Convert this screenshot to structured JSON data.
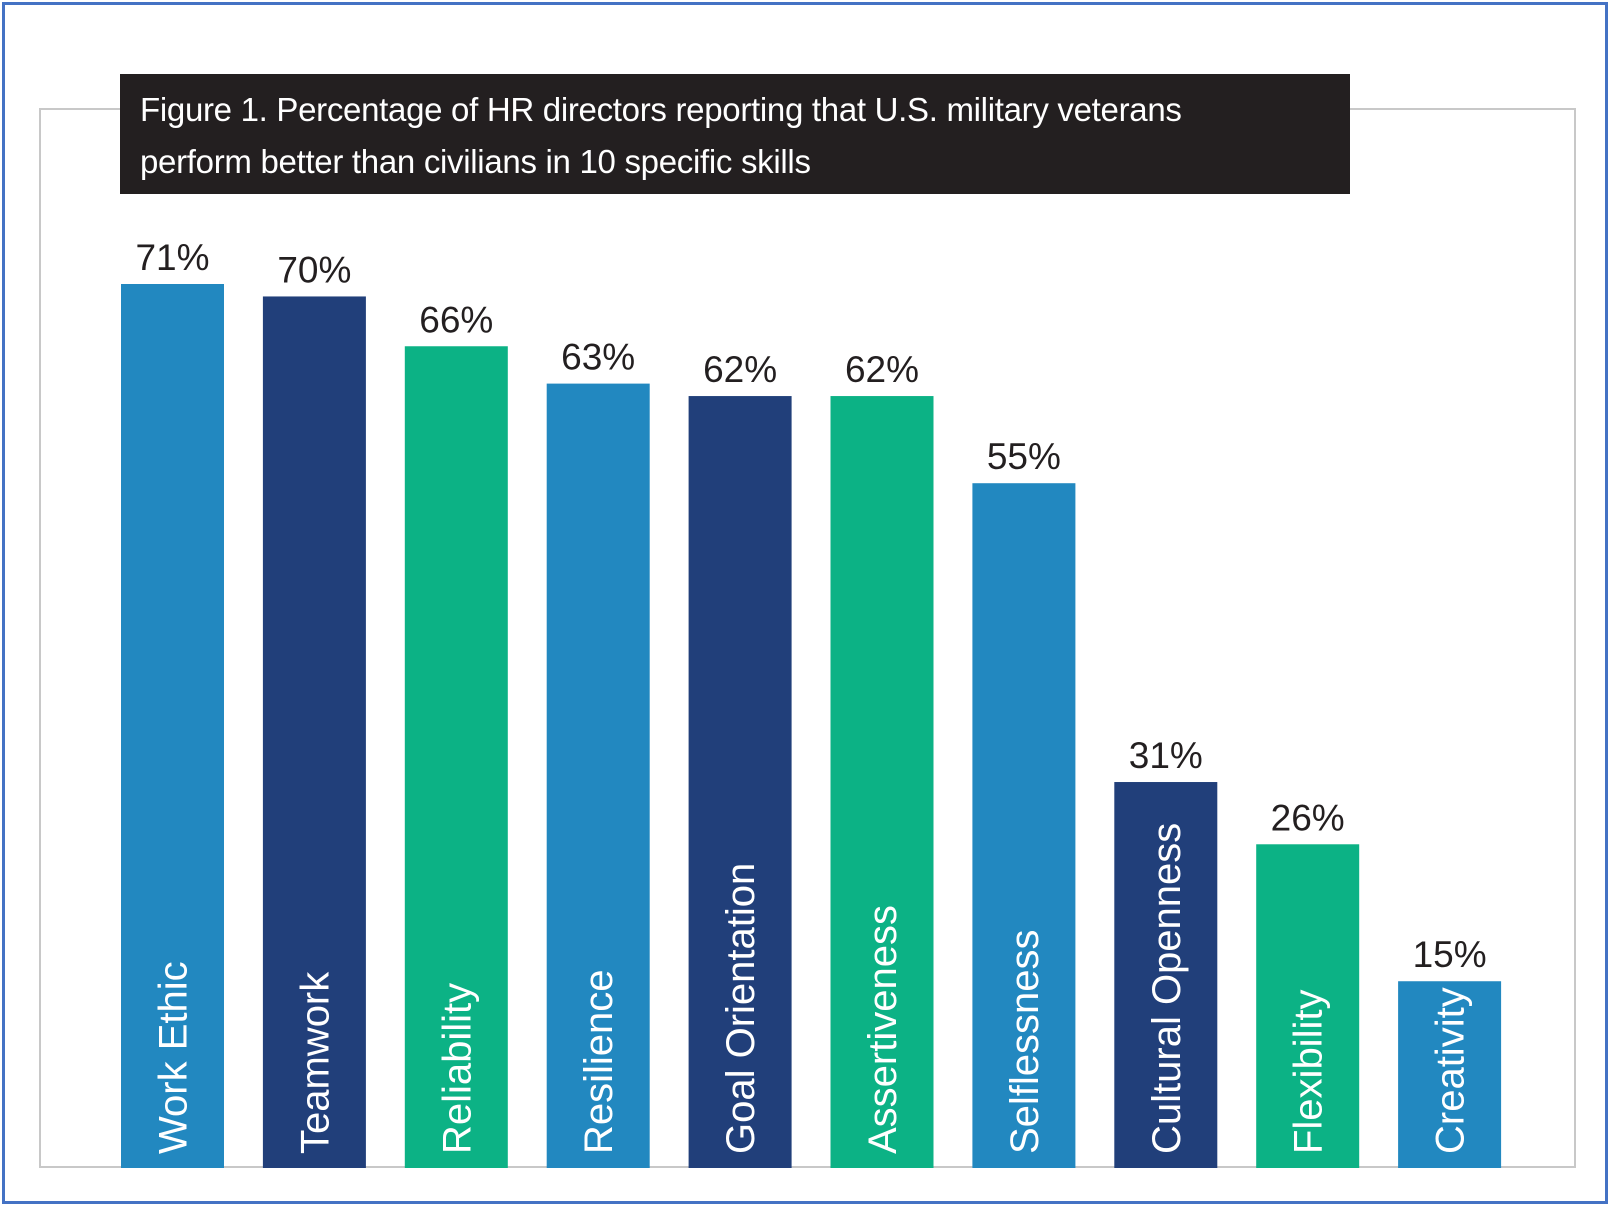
{
  "chart_title": {
    "line1": "Figure 1. Percentage of HR directors reporting that U.S. military veterans",
    "line2": "perform better than civilians in 10 specific skills"
  },
  "colors": {
    "light_blue": "#2288c0",
    "dark_blue": "#213f7a",
    "green": "#0cb285",
    "frame_blue": "#4472c4"
  },
  "chart_data": {
    "type": "bar",
    "title": "Figure 1. Percentage of HR directors reporting that U.S. military veterans perform better than civilians in 10 specific skills",
    "categories": [
      "Work Ethic",
      "Teamwork",
      "Reliability",
      "Resilience",
      "Goal Orientation",
      "Assertiveness",
      "Selflessness",
      "Cultural Openness",
      "Flexibility",
      "Creativity"
    ],
    "values": [
      71,
      70,
      66,
      63,
      62,
      62,
      55,
      31,
      26,
      15
    ],
    "value_labels": [
      "71%",
      "70%",
      "66%",
      "63%",
      "62%",
      "62%",
      "55%",
      "31%",
      "26%",
      "15%"
    ],
    "bar_colors": [
      "#2288c0",
      "#213f7a",
      "#0cb285",
      "#2288c0",
      "#213f7a",
      "#0cb285",
      "#2288c0",
      "#213f7a",
      "#0cb285",
      "#2288c0"
    ],
    "xlabel": "",
    "ylabel": "",
    "ylim": [
      0,
      71
    ],
    "grid": false,
    "legend": "none"
  }
}
